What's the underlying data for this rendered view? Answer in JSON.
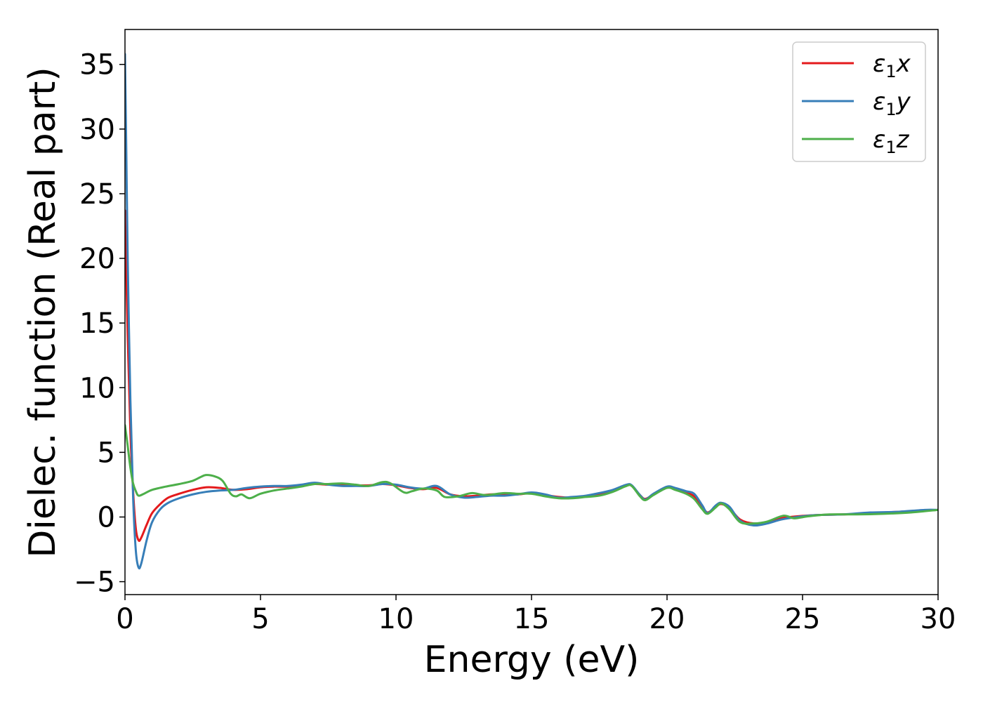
{
  "chart_data": {
    "type": "line",
    "xlabel": "Energy (eV)",
    "ylabel": "Dielec. function (Real part)",
    "xlim": [
      0,
      30
    ],
    "ylim": [
      -6,
      37.7
    ],
    "xticks": [
      0,
      5,
      10,
      15,
      20,
      25,
      30
    ],
    "xtick_labels": [
      "0",
      "5",
      "10",
      "15",
      "20",
      "25",
      "30"
    ],
    "yticks": [
      -5,
      0,
      5,
      10,
      15,
      20,
      25,
      30,
      35
    ],
    "ytick_labels": [
      "−5",
      "0",
      "5",
      "10",
      "15",
      "20",
      "25",
      "30",
      "35"
    ],
    "grid": false,
    "legend_position": "top-right",
    "series": [
      {
        "name": "x",
        "legend": {
          "symbol": "ε",
          "subscript": "1",
          "axis": "x"
        },
        "color": "#e41a1c",
        "points": [
          [
            0,
            23.7
          ],
          [
            0.1,
            14
          ],
          [
            0.2,
            6.5
          ],
          [
            0.3,
            2
          ],
          [
            0.4,
            -0.9
          ],
          [
            0.5,
            -1.8
          ],
          [
            0.6,
            -1.6
          ],
          [
            0.8,
            -0.6
          ],
          [
            1,
            0.3
          ],
          [
            1.3,
            1
          ],
          [
            1.6,
            1.5
          ],
          [
            2,
            1.8
          ],
          [
            2.5,
            2.1
          ],
          [
            3,
            2.3
          ],
          [
            3.5,
            2.25
          ],
          [
            4,
            2.1
          ],
          [
            4.5,
            2.15
          ],
          [
            5,
            2.3
          ],
          [
            5.5,
            2.35
          ],
          [
            6,
            2.35
          ],
          [
            6.5,
            2.45
          ],
          [
            7,
            2.55
          ],
          [
            7.5,
            2.5
          ],
          [
            8,
            2.5
          ],
          [
            8.5,
            2.45
          ],
          [
            9,
            2.45
          ],
          [
            9.5,
            2.55
          ],
          [
            10,
            2.45
          ],
          [
            10.5,
            2.25
          ],
          [
            11,
            2.15
          ],
          [
            11.5,
            2.25
          ],
          [
            12,
            1.75
          ],
          [
            12.5,
            1.6
          ],
          [
            13,
            1.65
          ],
          [
            13.5,
            1.75
          ],
          [
            14,
            1.75
          ],
          [
            14.5,
            1.75
          ],
          [
            15,
            1.85
          ],
          [
            15.5,
            1.7
          ],
          [
            16,
            1.55
          ],
          [
            16.5,
            1.5
          ],
          [
            17,
            1.6
          ],
          [
            17.5,
            1.75
          ],
          [
            18,
            2
          ],
          [
            18.5,
            2.45
          ],
          [
            18.7,
            2.4
          ],
          [
            19,
            1.7
          ],
          [
            19.2,
            1.4
          ],
          [
            19.5,
            1.75
          ],
          [
            20,
            2.3
          ],
          [
            20.3,
            2.2
          ],
          [
            20.7,
            1.9
          ],
          [
            21,
            1.6
          ],
          [
            21.3,
            0.8
          ],
          [
            21.5,
            0.35
          ],
          [
            21.8,
            0.8
          ],
          [
            22,
            1
          ],
          [
            22.3,
            0.7
          ],
          [
            22.7,
            -0.2
          ],
          [
            23.2,
            -0.5
          ],
          [
            23.7,
            -0.4
          ],
          [
            24.2,
            -0.1
          ],
          [
            24.8,
            0.05
          ],
          [
            25.5,
            0.15
          ],
          [
            26.5,
            0.2
          ],
          [
            27.5,
            0.3
          ],
          [
            28.5,
            0.4
          ],
          [
            29.5,
            0.5
          ],
          [
            30,
            0.55
          ]
        ]
      },
      {
        "name": "y",
        "legend": {
          "symbol": "ε",
          "subscript": "1",
          "axis": "y"
        },
        "color": "#377eb8",
        "points": [
          [
            0,
            35.8
          ],
          [
            0.05,
            28
          ],
          [
            0.1,
            20
          ],
          [
            0.2,
            9
          ],
          [
            0.3,
            1.5
          ],
          [
            0.4,
            -2.6
          ],
          [
            0.5,
            -3.9
          ],
          [
            0.6,
            -3.6
          ],
          [
            0.8,
            -1.8
          ],
          [
            1,
            -0.4
          ],
          [
            1.3,
            0.6
          ],
          [
            1.6,
            1.1
          ],
          [
            2,
            1.45
          ],
          [
            2.5,
            1.75
          ],
          [
            3,
            1.95
          ],
          [
            3.5,
            2.05
          ],
          [
            4,
            2.1
          ],
          [
            4.5,
            2.25
          ],
          [
            5,
            2.35
          ],
          [
            5.5,
            2.4
          ],
          [
            6,
            2.4
          ],
          [
            6.5,
            2.5
          ],
          [
            7,
            2.65
          ],
          [
            7.5,
            2.5
          ],
          [
            8,
            2.4
          ],
          [
            8.5,
            2.4
          ],
          [
            9,
            2.4
          ],
          [
            9.5,
            2.55
          ],
          [
            10,
            2.5
          ],
          [
            10.5,
            2.3
          ],
          [
            11,
            2.2
          ],
          [
            11.5,
            2.4
          ],
          [
            12,
            1.75
          ],
          [
            12.5,
            1.5
          ],
          [
            13,
            1.55
          ],
          [
            13.5,
            1.65
          ],
          [
            14,
            1.65
          ],
          [
            14.5,
            1.75
          ],
          [
            15,
            1.9
          ],
          [
            15.5,
            1.75
          ],
          [
            16,
            1.5
          ],
          [
            16.5,
            1.55
          ],
          [
            17,
            1.65
          ],
          [
            17.5,
            1.85
          ],
          [
            18,
            2.1
          ],
          [
            18.5,
            2.5
          ],
          [
            18.7,
            2.45
          ],
          [
            19,
            1.7
          ],
          [
            19.2,
            1.35
          ],
          [
            19.5,
            1.8
          ],
          [
            20,
            2.35
          ],
          [
            20.3,
            2.25
          ],
          [
            20.7,
            2.0
          ],
          [
            21,
            1.8
          ],
          [
            21.3,
            0.9
          ],
          [
            21.5,
            0.3
          ],
          [
            21.8,
            0.9
          ],
          [
            22,
            1.1
          ],
          [
            22.3,
            0.8
          ],
          [
            22.7,
            -0.3
          ],
          [
            23.2,
            -0.65
          ],
          [
            23.7,
            -0.5
          ],
          [
            24.2,
            -0.2
          ],
          [
            24.8,
            0
          ],
          [
            25.5,
            0.15
          ],
          [
            26.5,
            0.2
          ],
          [
            27.5,
            0.35
          ],
          [
            28.5,
            0.4
          ],
          [
            29.5,
            0.55
          ],
          [
            30,
            0.55
          ]
        ]
      },
      {
        "name": "z",
        "legend": {
          "symbol": "ε",
          "subscript": "1",
          "axis": "z"
        },
        "color": "#4daf4a",
        "points": [
          [
            0,
            7.1
          ],
          [
            0.1,
            5.5
          ],
          [
            0.2,
            3.8
          ],
          [
            0.3,
            2.6
          ],
          [
            0.4,
            2.0
          ],
          [
            0.5,
            1.65
          ],
          [
            0.7,
            1.8
          ],
          [
            1,
            2.1
          ],
          [
            1.5,
            2.35
          ],
          [
            2,
            2.55
          ],
          [
            2.5,
            2.8
          ],
          [
            2.8,
            3.1
          ],
          [
            3,
            3.25
          ],
          [
            3.3,
            3.15
          ],
          [
            3.6,
            2.8
          ],
          [
            3.9,
            1.8
          ],
          [
            4.1,
            1.6
          ],
          [
            4.3,
            1.75
          ],
          [
            4.6,
            1.45
          ],
          [
            5,
            1.8
          ],
          [
            5.5,
            2.05
          ],
          [
            6,
            2.2
          ],
          [
            6.5,
            2.35
          ],
          [
            7,
            2.55
          ],
          [
            7.5,
            2.55
          ],
          [
            8,
            2.6
          ],
          [
            8.5,
            2.5
          ],
          [
            9,
            2.4
          ],
          [
            9.5,
            2.7
          ],
          [
            9.8,
            2.6
          ],
          [
            10.3,
            1.9
          ],
          [
            10.6,
            2.0
          ],
          [
            11,
            2.2
          ],
          [
            11.5,
            2.05
          ],
          [
            11.8,
            1.55
          ],
          [
            12.3,
            1.6
          ],
          [
            12.8,
            1.85
          ],
          [
            13.3,
            1.7
          ],
          [
            14,
            1.85
          ],
          [
            14.5,
            1.8
          ],
          [
            15,
            1.8
          ],
          [
            15.5,
            1.6
          ],
          [
            16,
            1.45
          ],
          [
            16.5,
            1.45
          ],
          [
            17,
            1.55
          ],
          [
            17.5,
            1.65
          ],
          [
            18,
            1.95
          ],
          [
            18.5,
            2.4
          ],
          [
            18.7,
            2.4
          ],
          [
            19,
            1.6
          ],
          [
            19.2,
            1.3
          ],
          [
            19.5,
            1.7
          ],
          [
            20,
            2.25
          ],
          [
            20.3,
            2.1
          ],
          [
            20.7,
            1.8
          ],
          [
            21,
            1.4
          ],
          [
            21.3,
            0.6
          ],
          [
            21.5,
            0.25
          ],
          [
            21.8,
            0.75
          ],
          [
            22,
            1.05
          ],
          [
            22.3,
            0.6
          ],
          [
            22.7,
            -0.4
          ],
          [
            23.2,
            -0.5
          ],
          [
            23.7,
            -0.35
          ],
          [
            24.3,
            0.1
          ],
          [
            24.7,
            -0.1
          ],
          [
            25.2,
            0.05
          ],
          [
            26,
            0.2
          ],
          [
            27,
            0.2
          ],
          [
            28,
            0.25
          ],
          [
            29,
            0.35
          ],
          [
            30,
            0.55
          ]
        ]
      }
    ]
  }
}
